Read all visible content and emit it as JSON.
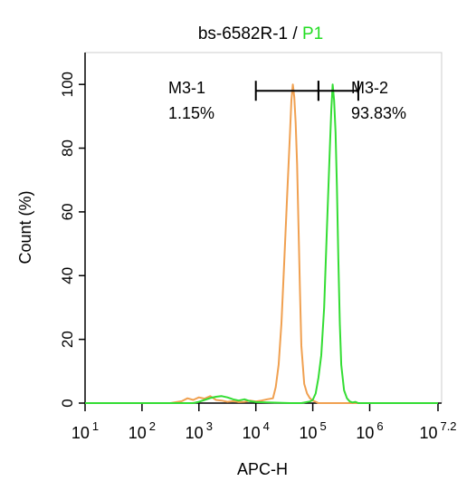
{
  "chart_data": {
    "type": "line",
    "title": "bs-6582R-1 /",
    "title_highlight": "P1",
    "title_highlight_color": "#22dd22",
    "xlabel": "APC-H",
    "ylabel": "Count  (%)",
    "x_scale": "log",
    "xlim": [
      10,
      15848932
    ],
    "ylim": [
      0,
      110
    ],
    "grid": false,
    "x_ticks": [
      {
        "value": 10,
        "base": "10",
        "exp": "1"
      },
      {
        "value": 100,
        "base": "10",
        "exp": "2"
      },
      {
        "value": 1000,
        "base": "10",
        "exp": "3"
      },
      {
        "value": 10000,
        "base": "10",
        "exp": "4"
      },
      {
        "value": 100000,
        "base": "10",
        "exp": "5"
      },
      {
        "value": 1000000,
        "base": "10",
        "exp": "6"
      },
      {
        "value": 15848932,
        "base": "10",
        "exp": "7.2"
      }
    ],
    "y_ticks": [
      {
        "value": 0,
        "label": "0"
      },
      {
        "value": 20,
        "label": "20"
      },
      {
        "value": 40,
        "label": "40"
      },
      {
        "value": 60,
        "label": "60"
      },
      {
        "value": 80,
        "label": "80"
      },
      {
        "value": 100,
        "label": "100"
      }
    ],
    "series": [
      {
        "color": "#f0a050",
        "x": [
          10,
          316,
          501,
          631,
          794,
          1000,
          1259,
          1585,
          1995,
          2512,
          3162,
          3981,
          5012,
          6310,
          7943,
          10000,
          12589,
          15849,
          19953,
          22387,
          25119,
          28184,
          31623,
          35481,
          39811,
          42170,
          44668,
          47315,
          50119,
          53088,
          56234,
          59566,
          63096,
          70795,
          79433,
          89125,
          100000,
          112202,
          125893,
          1000000,
          15848932
        ],
        "y": [
          0,
          0,
          0.6,
          1.5,
          1.0,
          1.8,
          1.4,
          2.2,
          1.0,
          0.8,
          0.4,
          0.6,
          0.3,
          0.4,
          0.8,
          0.5,
          0.8,
          1.2,
          1.5,
          5,
          12,
          25,
          45,
          65,
          85,
          95,
          100,
          96,
          88,
          75,
          55,
          35,
          18,
          6,
          3,
          1.5,
          0.8,
          0.4,
          0,
          0,
          0
        ]
      },
      {
        "color": "#33dd33",
        "x": [
          10,
          794,
          1000,
          1259,
          1585,
          1995,
          2512,
          3162,
          3981,
          5012,
          6310,
          7943,
          10000,
          15849,
          25119,
          39811,
          63096,
          89125,
          100000,
          112202,
          125893,
          141254,
          158489,
          177828,
          199526,
          211349,
          223872,
          237137,
          251189,
          266073,
          281838,
          298538,
          316228,
          354813,
          398107,
          446684,
          501187,
          562341,
          630957,
          1000000,
          15848932
        ],
        "y": [
          0,
          0,
          0.4,
          1.0,
          1.6,
          2.0,
          2.2,
          1.8,
          1.2,
          0.8,
          1.2,
          0.6,
          0.3,
          0.2,
          0.1,
          0,
          0,
          0.5,
          1,
          3,
          8,
          15,
          30,
          55,
          80,
          92,
          100,
          95,
          85,
          68,
          45,
          25,
          12,
          4,
          1.5,
          0.5,
          0.2,
          0.4,
          0,
          0,
          0
        ]
      }
    ],
    "gates": [
      {
        "name": "M3-1",
        "percent": "1.15%",
        "x_from": 10000,
        "x_to": 125893
      },
      {
        "name": "M3-2",
        "percent": "93.83%",
        "x_from": 125893,
        "x_to": 630957
      }
    ],
    "gate_bar_y": 98
  }
}
